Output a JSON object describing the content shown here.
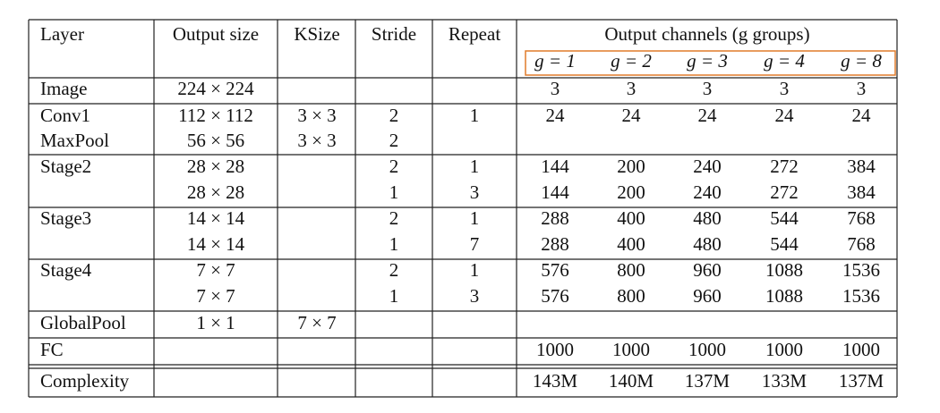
{
  "table": {
    "header": [
      "Layer",
      "Output size",
      "KSize",
      "Stride",
      "Repeat",
      "Output channels (g groups)"
    ],
    "group_header": [
      "g = 1",
      "g = 2",
      "g = 3",
      "g = 4",
      "g = 8"
    ],
    "rows": [
      [
        "Image",
        "224 × 224",
        null,
        null,
        null,
        3,
        3,
        3,
        3,
        3
      ],
      [
        "Conv1",
        "112 × 112",
        "3 × 3",
        2,
        1,
        24,
        24,
        24,
        24,
        24
      ],
      [
        "MaxPool",
        "56 × 56",
        "3 × 3",
        2,
        null,
        null,
        null,
        null,
        null,
        null
      ],
      [
        "Stage2",
        "28 × 28",
        null,
        2,
        1,
        144,
        200,
        240,
        272,
        384
      ],
      [
        null,
        "28 × 28",
        null,
        1,
        3,
        144,
        200,
        240,
        272,
        384
      ],
      [
        "Stage3",
        "14 × 14",
        null,
        2,
        1,
        288,
        400,
        480,
        544,
        768
      ],
      [
        null,
        "14 × 14",
        null,
        1,
        7,
        288,
        400,
        480,
        544,
        768
      ],
      [
        "Stage4",
        "7 × 7",
        null,
        2,
        1,
        576,
        800,
        960,
        1088,
        1536
      ],
      [
        null,
        "7 × 7",
        null,
        1,
        3,
        576,
        800,
        960,
        1088,
        1536
      ],
      [
        "GlobalPool",
        "1 × 1",
        "7 × 7",
        null,
        null,
        null,
        null,
        null,
        null,
        null
      ],
      [
        "FC",
        null,
        null,
        null,
        null,
        1000,
        1000,
        1000,
        1000,
        1000
      ],
      [
        "Complexity",
        null,
        null,
        null,
        null,
        "143M",
        "140M",
        "137M",
        "133M",
        "137M"
      ]
    ]
  }
}
